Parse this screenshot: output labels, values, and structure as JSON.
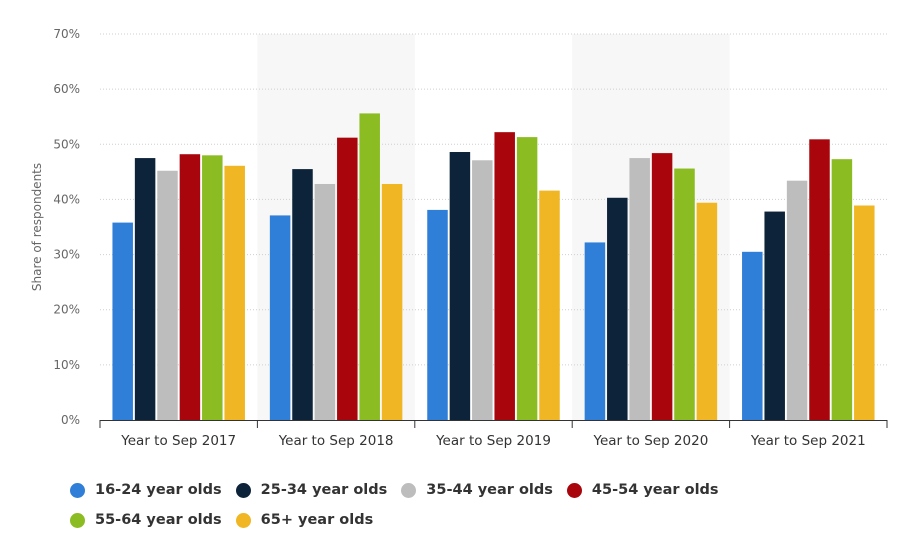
{
  "chart_data": {
    "type": "bar",
    "title": "",
    "xlabel": "",
    "ylabel": "Share of respondents",
    "ylim": [
      0,
      70
    ],
    "y_ticks": [
      "0%",
      "10%",
      "20%",
      "30%",
      "40%",
      "50%",
      "60%",
      "70%"
    ],
    "categories": [
      "Year to Sep 2017",
      "Year to Sep 2018",
      "Year to Sep 2019",
      "Year to Sep 2020",
      "Year to Sep 2021"
    ],
    "series": [
      {
        "name": "16-24 year olds",
        "color": "#2f7ed8",
        "values": [
          35.8,
          37.1,
          38.1,
          32.2,
          30.5
        ]
      },
      {
        "name": "25-34 year olds",
        "color": "#0d233a",
        "values": [
          47.5,
          45.5,
          48.6,
          40.3,
          37.8
        ]
      },
      {
        "name": "35-44 year olds",
        "color": "#bdbdbd",
        "values": [
          45.2,
          42.8,
          47.1,
          47.5,
          43.4
        ]
      },
      {
        "name": "45-54 year olds",
        "color": "#a8060c",
        "values": [
          48.2,
          51.2,
          52.2,
          48.4,
          50.9
        ]
      },
      {
        "name": "55-64 year olds",
        "color": "#8bbc21",
        "values": [
          48.0,
          55.6,
          51.3,
          45.6,
          47.3
        ]
      },
      {
        "name": "65+ year olds",
        "color": "#f0b623",
        "values": [
          46.1,
          42.8,
          41.6,
          39.4,
          38.9
        ]
      }
    ],
    "legend_position": "bottom",
    "grid": true
  }
}
